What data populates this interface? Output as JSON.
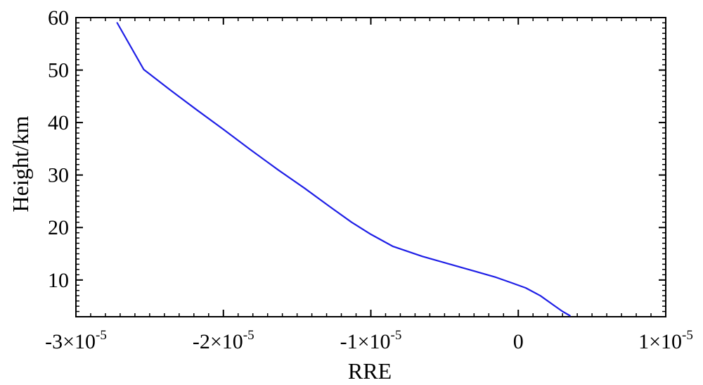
{
  "chart_data": {
    "type": "line",
    "title": "",
    "xlabel": "RRE",
    "ylabel": "Height/km",
    "xlim": [
      -3e-05,
      1e-05
    ],
    "ylim": [
      3,
      60
    ],
    "grid": false,
    "line_color": "#1f1fe6",
    "x_ticks": [
      {
        "value": -3e-05,
        "mantissa": "-3×10",
        "exponent": "-5"
      },
      {
        "value": -2e-05,
        "mantissa": "-2×10",
        "exponent": "-5"
      },
      {
        "value": -1e-05,
        "mantissa": "-1×10",
        "exponent": "-5"
      },
      {
        "value": 0,
        "mantissa": "0",
        "exponent": ""
      },
      {
        "value": 1e-05,
        "mantissa": "1×10",
        "exponent": "-5"
      }
    ],
    "y_ticks": [
      {
        "value": 10,
        "label": "10"
      },
      {
        "value": 20,
        "label": "20"
      },
      {
        "value": 30,
        "label": "30"
      },
      {
        "value": 40,
        "label": "40"
      },
      {
        "value": 50,
        "label": "50"
      },
      {
        "value": 60,
        "label": "60"
      }
    ],
    "series": [
      {
        "x": [
          3.5e-06,
          3e-06,
          2.5e-06,
          1.5e-06,
          5e-07,
          -5e-07,
          -1.5e-06,
          -3e-06,
          -4.5e-06,
          -6.5e-06,
          -8.5e-06,
          -1e-05,
          -1.13e-05,
          -1.28e-05,
          -1.45e-05,
          -1.63e-05,
          -1.82e-05,
          -2e-05,
          -2.18e-05,
          -2.36e-05,
          -2.54e-05,
          -2.72e-05
        ],
        "y": [
          3.2,
          4.0,
          5.0,
          7.0,
          8.5,
          9.5,
          10.5,
          11.7,
          12.9,
          14.5,
          16.4,
          18.7,
          21.0,
          24.0,
          27.5,
          31.0,
          34.9,
          38.7,
          42.4,
          46.2,
          50.1,
          59.0
        ]
      }
    ]
  }
}
